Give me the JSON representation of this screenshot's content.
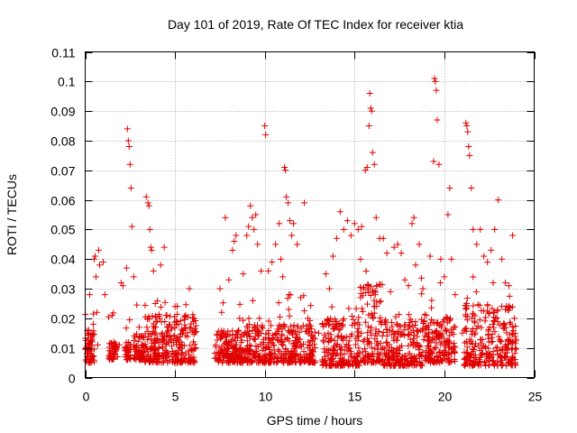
{
  "chart_data": {
    "type": "scatter",
    "title": "Day 101 of 2019, Rate Of TEC Index for receiver ktia",
    "xlabel": "GPS time / hours",
    "ylabel": "ROTI / TECUs",
    "xlim": [
      0,
      25
    ],
    "ylim": [
      0,
      0.11
    ],
    "xticks": [
      0,
      5,
      10,
      15,
      20,
      25
    ],
    "xtick_labels": [
      "0",
      "5",
      "10",
      "15",
      "20",
      "25"
    ],
    "yticks": [
      0,
      0.01,
      0.02,
      0.03,
      0.04,
      0.05,
      0.06,
      0.07,
      0.08,
      0.09,
      0.1,
      0.11
    ],
    "ytick_labels": [
      "0",
      "0.01",
      "0.02",
      "0.03",
      "0.04",
      "0.05",
      "0.06",
      "0.07",
      "0.08",
      "0.09",
      "0.1",
      "0.11"
    ],
    "grid": true,
    "marker": "+",
    "marker_color": "#e00000",
    "series": [
      {
        "name": "ROTI",
        "points": [
          [
            0.05,
            0.01
          ],
          [
            0.1,
            0.008
          ],
          [
            0.15,
            0.013
          ],
          [
            0.2,
            0.016
          ],
          [
            0.25,
            0.028
          ],
          [
            0.3,
            0.012
          ],
          [
            0.35,
            0.009
          ],
          [
            0.4,
            0.007
          ],
          [
            0.45,
            0.018
          ],
          [
            0.5,
            0.04
          ],
          [
            0.55,
            0.041
          ],
          [
            0.6,
            0.034
          ],
          [
            0.65,
            0.022
          ],
          [
            0.7,
            0.011
          ],
          [
            0.75,
            0.043
          ],
          [
            0.8,
            0.038
          ],
          [
            1.0,
            0.039
          ],
          [
            1.1,
            0.028
          ],
          [
            1.5,
            0.021
          ],
          [
            1.6,
            0.012
          ],
          [
            1.7,
            0.009
          ],
          [
            1.8,
            0.007
          ],
          [
            1.9,
            0.011
          ],
          [
            2.0,
            0.032
          ],
          [
            2.1,
            0.031
          ],
          [
            2.2,
            0.01
          ],
          [
            2.25,
            0.009
          ],
          [
            2.3,
            0.037
          ],
          [
            2.35,
            0.084
          ],
          [
            2.4,
            0.08
          ],
          [
            2.45,
            0.078
          ],
          [
            2.5,
            0.072
          ],
          [
            2.55,
            0.064
          ],
          [
            2.6,
            0.051
          ],
          [
            2.7,
            0.034
          ],
          [
            2.8,
            0.01
          ],
          [
            2.9,
            0.008
          ],
          [
            3.0,
            0.017
          ],
          [
            3.1,
            0.014
          ],
          [
            3.2,
            0.011
          ],
          [
            3.3,
            0.009
          ],
          [
            3.4,
            0.061
          ],
          [
            3.5,
            0.059
          ],
          [
            3.55,
            0.058
          ],
          [
            3.6,
            0.05
          ],
          [
            3.65,
            0.044
          ],
          [
            3.7,
            0.043
          ],
          [
            3.8,
            0.036
          ],
          [
            3.9,
            0.025
          ],
          [
            4.0,
            0.019
          ],
          [
            4.1,
            0.012
          ],
          [
            4.2,
            0.038
          ],
          [
            4.3,
            0.015
          ],
          [
            4.4,
            0.044
          ],
          [
            4.5,
            0.021
          ],
          [
            4.6,
            0.017
          ],
          [
            4.8,
            0.013
          ],
          [
            5.0,
            0.024
          ],
          [
            5.2,
            0.018
          ],
          [
            5.4,
            0.011
          ],
          [
            5.6,
            0.021
          ],
          [
            5.8,
            0.03
          ],
          [
            6.0,
            0.009
          ],
          [
            7.5,
            0.03
          ],
          [
            7.6,
            0.022
          ],
          [
            7.7,
            0.015
          ],
          [
            7.8,
            0.054
          ],
          [
            7.9,
            0.011
          ],
          [
            8.0,
            0.033
          ],
          [
            8.2,
            0.043
          ],
          [
            8.3,
            0.046
          ],
          [
            8.4,
            0.048
          ],
          [
            8.6,
            0.02
          ],
          [
            8.8,
            0.035
          ],
          [
            9.0,
            0.048
          ],
          [
            9.1,
            0.051
          ],
          [
            9.2,
            0.058
          ],
          [
            9.3,
            0.054
          ],
          [
            9.4,
            0.05
          ],
          [
            9.5,
            0.055
          ],
          [
            9.6,
            0.045
          ],
          [
            9.7,
            0.02
          ],
          [
            9.8,
            0.036
          ],
          [
            10.0,
            0.085
          ],
          [
            10.05,
            0.082
          ],
          [
            10.2,
            0.036
          ],
          [
            10.4,
            0.039
          ],
          [
            10.6,
            0.045
          ],
          [
            10.8,
            0.052
          ],
          [
            10.9,
            0.04
          ],
          [
            11.0,
            0.034
          ],
          [
            11.1,
            0.071
          ],
          [
            11.15,
            0.07
          ],
          [
            11.2,
            0.061
          ],
          [
            11.3,
            0.059
          ],
          [
            11.4,
            0.053
          ],
          [
            11.5,
            0.048
          ],
          [
            11.6,
            0.052
          ],
          [
            11.8,
            0.045
          ],
          [
            12.0,
            0.027
          ],
          [
            12.2,
            0.059
          ],
          [
            12.4,
            0.02
          ],
          [
            12.6,
            0.014
          ],
          [
            12.8,
            0.01
          ],
          [
            13.0,
            0.015
          ],
          [
            13.2,
            0.018
          ],
          [
            13.4,
            0.035
          ],
          [
            13.6,
            0.03
          ],
          [
            13.8,
            0.041
          ],
          [
            14.0,
            0.047
          ],
          [
            14.2,
            0.056
          ],
          [
            14.4,
            0.05
          ],
          [
            14.6,
            0.053
          ],
          [
            14.8,
            0.048
          ],
          [
            15.0,
            0.052
          ],
          [
            15.2,
            0.05
          ],
          [
            15.4,
            0.051
          ],
          [
            15.6,
            0.07
          ],
          [
            15.7,
            0.071
          ],
          [
            15.8,
            0.085
          ],
          [
            15.85,
            0.096
          ],
          [
            15.9,
            0.091
          ],
          [
            15.95,
            0.09
          ],
          [
            16.0,
            0.076
          ],
          [
            16.1,
            0.072
          ],
          [
            16.2,
            0.054
          ],
          [
            16.4,
            0.047
          ],
          [
            16.6,
            0.047
          ],
          [
            16.8,
            0.042
          ],
          [
            17.0,
            0.029
          ],
          [
            17.2,
            0.044
          ],
          [
            17.4,
            0.045
          ],
          [
            17.6,
            0.042
          ],
          [
            17.8,
            0.033
          ],
          [
            18.0,
            0.031
          ],
          [
            18.2,
            0.052
          ],
          [
            18.3,
            0.054
          ],
          [
            18.4,
            0.038
          ],
          [
            18.6,
            0.045
          ],
          [
            18.8,
            0.03
          ],
          [
            19.0,
            0.021
          ],
          [
            19.2,
            0.041
          ],
          [
            19.4,
            0.073
          ],
          [
            19.45,
            0.101
          ],
          [
            19.5,
            0.1
          ],
          [
            19.55,
            0.097
          ],
          [
            19.6,
            0.087
          ],
          [
            19.7,
            0.072
          ],
          [
            19.8,
            0.04
          ],
          [
            20.0,
            0.034
          ],
          [
            20.2,
            0.055
          ],
          [
            20.3,
            0.064
          ],
          [
            20.4,
            0.04
          ],
          [
            20.6,
            0.028
          ],
          [
            21.0,
            0.015
          ],
          [
            21.2,
            0.086
          ],
          [
            21.25,
            0.085
          ],
          [
            21.3,
            0.083
          ],
          [
            21.35,
            0.078
          ],
          [
            21.4,
            0.075
          ],
          [
            21.5,
            0.064
          ],
          [
            21.6,
            0.05
          ],
          [
            21.8,
            0.045
          ],
          [
            22.0,
            0.05
          ],
          [
            22.2,
            0.041
          ],
          [
            22.4,
            0.039
          ],
          [
            22.6,
            0.043
          ],
          [
            22.8,
            0.05
          ],
          [
            23.0,
            0.06
          ],
          [
            23.2,
            0.04
          ],
          [
            23.4,
            0.032
          ],
          [
            23.6,
            0.031
          ],
          [
            23.8,
            0.048
          ],
          [
            23.9,
            0.02
          ]
        ]
      }
    ],
    "dense_segments": [
      {
        "x0": 0.0,
        "x1": 0.55,
        "ybase": 0.005,
        "ytop": 0.017
      },
      {
        "x0": 1.3,
        "x1": 1.75,
        "ybase": 0.006,
        "ytop": 0.012
      },
      {
        "x0": 2.2,
        "x1": 2.55,
        "ybase": 0.006,
        "ytop": 0.012
      },
      {
        "x0": 2.7,
        "x1": 3.3,
        "ybase": 0.006,
        "ytop": 0.015
      },
      {
        "x0": 3.3,
        "x1": 6.2,
        "ybase": 0.005,
        "ytop": 0.022
      },
      {
        "x0": 7.2,
        "x1": 9.0,
        "ybase": 0.005,
        "ytop": 0.016
      },
      {
        "x0": 9.0,
        "x1": 12.8,
        "ybase": 0.005,
        "ytop": 0.018
      },
      {
        "x0": 13.2,
        "x1": 15.3,
        "ybase": 0.004,
        "ytop": 0.02
      },
      {
        "x0": 15.3,
        "x1": 16.6,
        "ybase": 0.005,
        "ytop": 0.032
      },
      {
        "x0": 16.6,
        "x1": 18.8,
        "ybase": 0.004,
        "ytop": 0.02
      },
      {
        "x0": 18.8,
        "x1": 20.6,
        "ybase": 0.005,
        "ytop": 0.02
      },
      {
        "x0": 21.1,
        "x1": 24.0,
        "ybase": 0.004,
        "ytop": 0.025
      }
    ]
  }
}
